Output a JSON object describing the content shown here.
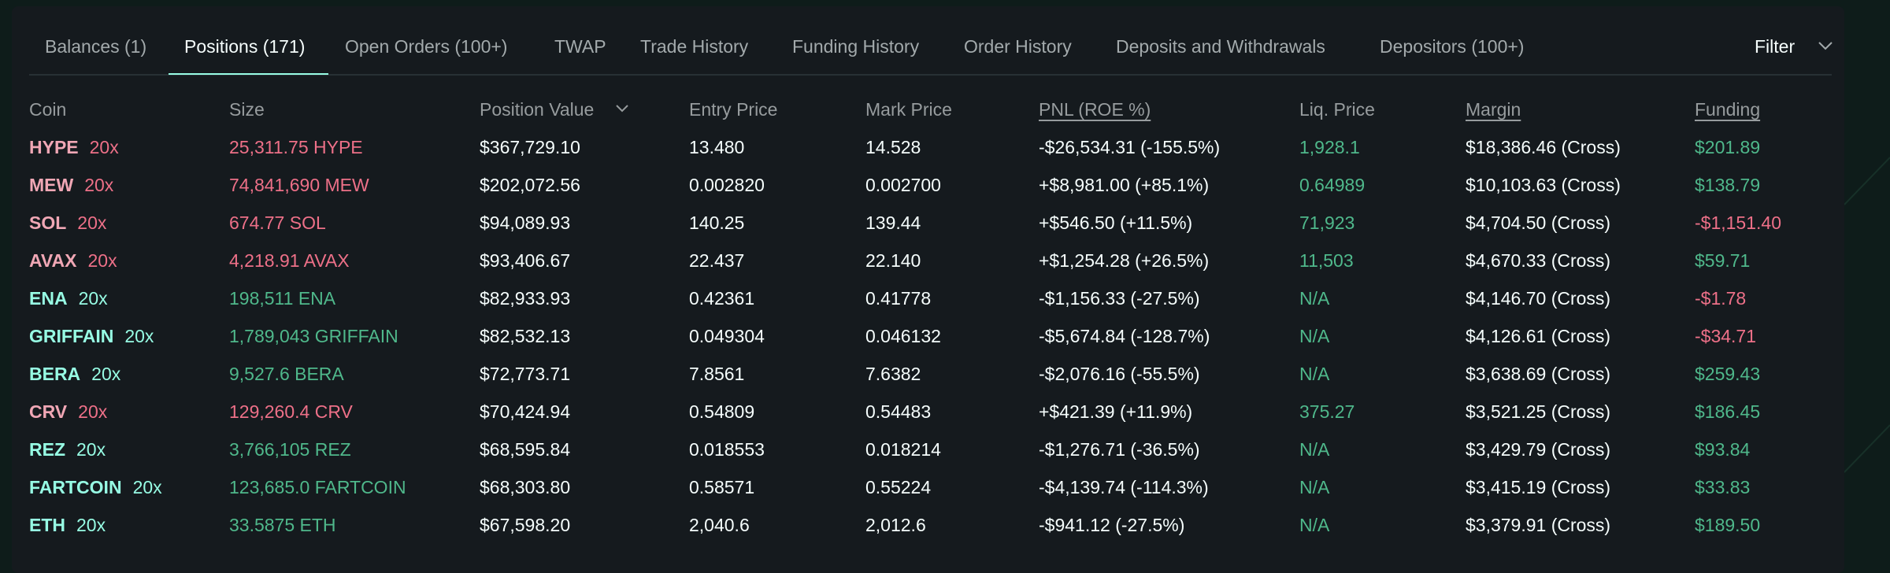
{
  "tabs": [
    "Balances (1)",
    "Positions (171)",
    "Open Orders (100+)",
    "TWAP",
    "Trade History",
    "Funding History",
    "Order History",
    "Deposits and Withdrawals",
    "Depositors (100+)"
  ],
  "active_tab": 1,
  "filter": "Filter",
  "columns": [
    "Coin",
    "Size",
    "Position Value",
    "Entry Price",
    "Mark Price",
    "PNL (ROE %)",
    "Liq. Price",
    "Margin",
    "Funding"
  ],
  "rows": [
    {
      "side": "short",
      "cells": [
        "HYPE",
        "20x",
        "25,311.75 HYPE",
        "$367,729.10",
        "13.480",
        "14.528",
        "-$26,534.31 (-155.5%)",
        "1,928.1",
        "$18,386.46 (Cross)",
        "$201.89"
      ]
    },
    {
      "side": "short",
      "cells": [
        "MEW",
        "20x",
        "74,841,690 MEW",
        "$202,072.56",
        "0.002820",
        "0.002700",
        "+$8,981.00 (+85.1%)",
        "0.64989",
        "$10,103.63 (Cross)",
        "$138.79"
      ]
    },
    {
      "side": "short",
      "cells": [
        "SOL",
        "20x",
        "674.77 SOL",
        "$94,089.93",
        "140.25",
        "139.44",
        "+$546.50 (+11.5%)",
        "71,923",
        "$4,704.50 (Cross)",
        "-$1,151.40"
      ]
    },
    {
      "side": "short",
      "cells": [
        "AVAX",
        "20x",
        "4,218.91 AVAX",
        "$93,406.67",
        "22.437",
        "22.140",
        "+$1,254.28 (+26.5%)",
        "11,503",
        "$4,670.33 (Cross)",
        "$59.71"
      ]
    },
    {
      "side": "long",
      "cells": [
        "ENA",
        "20x",
        "198,511 ENA",
        "$82,933.93",
        "0.42361",
        "0.41778",
        "-$1,156.33 (-27.5%)",
        "N/A",
        "$4,146.70 (Cross)",
        "-$1.78"
      ]
    },
    {
      "side": "long",
      "cells": [
        "GRIFFAIN",
        "20x",
        "1,789,043 GRIFFAIN",
        "$82,532.13",
        "0.049304",
        "0.046132",
        "-$5,674.84 (-128.7%)",
        "N/A",
        "$4,126.61 (Cross)",
        "-$34.71"
      ]
    },
    {
      "side": "long",
      "cells": [
        "BERA",
        "20x",
        "9,527.6 BERA",
        "$72,773.71",
        "7.8561",
        "7.6382",
        "-$2,076.16 (-55.5%)",
        "N/A",
        "$3,638.69 (Cross)",
        "$259.43"
      ]
    },
    {
      "side": "short",
      "cells": [
        "CRV",
        "20x",
        "129,260.4 CRV",
        "$70,424.94",
        "0.54809",
        "0.54483",
        "+$421.39 (+11.9%)",
        "375.27",
        "$3,521.25 (Cross)",
        "$186.45"
      ]
    },
    {
      "side": "long",
      "cells": [
        "REZ",
        "20x",
        "3,766,105 REZ",
        "$68,595.84",
        "0.018553",
        "0.018214",
        "-$1,276.71 (-36.5%)",
        "N/A",
        "$3,429.79 (Cross)",
        "$93.84"
      ]
    },
    {
      "side": "long",
      "cells": [
        "FARTCOIN",
        "20x",
        "123,685.0 FARTCOIN",
        "$68,303.80",
        "0.58571",
        "0.55224",
        "-$4,139.74 (-114.3%)",
        "N/A",
        "$3,415.19 (Cross)",
        "$33.83"
      ]
    },
    {
      "side": "long",
      "cells": [
        "ETH",
        "20x",
        "33.5875 ETH",
        "$67,598.20",
        "2,040.6",
        "2,012.6",
        "-$941.12 (-27.5%)",
        "N/A",
        "$3,379.91 (Cross)",
        "$189.50"
      ]
    }
  ]
}
